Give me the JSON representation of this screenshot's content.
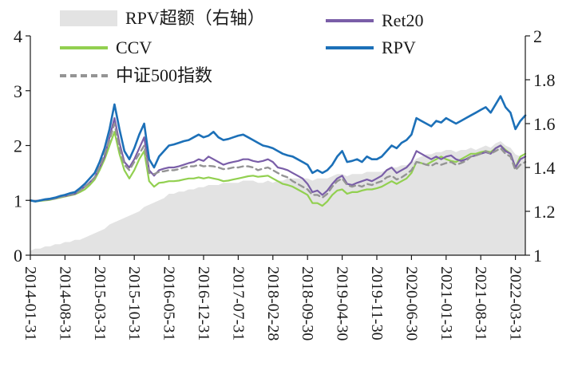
{
  "legend": {
    "items": [
      {
        "label": "RPV超额（右轴）",
        "series": "excess"
      },
      {
        "label": "Ret20",
        "series": "ret20"
      },
      {
        "label": "CCV",
        "series": "ccv"
      },
      {
        "label": "RPV",
        "series": "rpv"
      },
      {
        "label": "中证500指数",
        "series": "csi500"
      }
    ]
  },
  "chart_data": {
    "type": "line",
    "title": "",
    "background": "#ffffff",
    "axis_color": "#1a1a1a",
    "left_axis": {
      "range": [
        0,
        4
      ],
      "ticks": [
        {
          "value": 0,
          "label": "0"
        },
        {
          "value": 1,
          "label": "1"
        },
        {
          "value": 2,
          "label": "2"
        },
        {
          "value": 3,
          "label": "3"
        },
        {
          "value": 4,
          "label": "4"
        }
      ]
    },
    "right_axis": {
      "range": [
        1,
        2
      ],
      "ticks": [
        {
          "value": 1,
          "label": "1"
        },
        {
          "value": 1.2,
          "label": "1.2"
        },
        {
          "value": 1.4,
          "label": "1.4"
        },
        {
          "value": 1.6,
          "label": "1.6"
        },
        {
          "value": 1.8,
          "label": "1.8"
        },
        {
          "value": 2,
          "label": "2"
        }
      ]
    },
    "x": [
      "2014-01",
      "2014-02",
      "2014-03",
      "2014-04",
      "2014-05",
      "2014-06",
      "2014-07",
      "2014-08",
      "2014-09",
      "2014-10",
      "2014-11",
      "2014-12",
      "2015-01",
      "2015-02",
      "2015-03",
      "2015-04",
      "2015-05",
      "2015-06",
      "2015-07",
      "2015-08",
      "2015-09",
      "2015-10",
      "2015-11",
      "2015-12",
      "2016-01",
      "2016-02",
      "2016-03",
      "2016-04",
      "2016-05",
      "2016-06",
      "2016-07",
      "2016-08",
      "2016-09",
      "2016-10",
      "2016-11",
      "2016-12",
      "2017-01",
      "2017-02",
      "2017-03",
      "2017-04",
      "2017-05",
      "2017-06",
      "2017-07",
      "2017-08",
      "2017-09",
      "2017-10",
      "2017-11",
      "2017-12",
      "2018-01",
      "2018-02",
      "2018-03",
      "2018-04",
      "2018-05",
      "2018-06",
      "2018-07",
      "2018-08",
      "2018-09",
      "2018-10",
      "2018-11",
      "2018-12",
      "2019-01",
      "2019-02",
      "2019-03",
      "2019-04",
      "2019-05",
      "2019-06",
      "2019-07",
      "2019-08",
      "2019-09",
      "2019-10",
      "2019-11",
      "2019-12",
      "2020-01",
      "2020-02",
      "2020-03",
      "2020-04",
      "2020-05",
      "2020-06",
      "2020-07",
      "2020-08",
      "2020-09",
      "2020-10",
      "2020-11",
      "2020-12",
      "2021-01",
      "2021-02",
      "2021-03",
      "2021-04",
      "2021-05",
      "2021-06",
      "2021-07",
      "2021-08",
      "2021-09",
      "2021-10",
      "2021-11",
      "2021-12",
      "2022-01",
      "2022-02",
      "2022-03",
      "2022-04",
      "2022-05"
    ],
    "x_ticks": [
      {
        "index": 0,
        "label": "2014-01-31"
      },
      {
        "index": 7,
        "label": "2014-08-31"
      },
      {
        "index": 14,
        "label": "2015-03-31"
      },
      {
        "index": 21,
        "label": "2015-10-31"
      },
      {
        "index": 28,
        "label": "2016-05-31"
      },
      {
        "index": 35,
        "label": "2016-12-31"
      },
      {
        "index": 42,
        "label": "2017-07-31"
      },
      {
        "index": 49,
        "label": "2018-02-28"
      },
      {
        "index": 56,
        "label": "2018-09-30"
      },
      {
        "index": 63,
        "label": "2019-04-30"
      },
      {
        "index": 70,
        "label": "2019-11-30"
      },
      {
        "index": 77,
        "label": "2020-06-30"
      },
      {
        "index": 84,
        "label": "2021-01-31"
      },
      {
        "index": 91,
        "label": "2021-08-31"
      },
      {
        "index": 98,
        "label": "2022-03-31"
      }
    ],
    "series": [
      {
        "id": "excess",
        "name": "RPV超额（右轴）",
        "kind": "area",
        "axis": "right",
        "color": "#e3e3e3",
        "values": [
          1.02,
          1.03,
          1.03,
          1.04,
          1.04,
          1.05,
          1.05,
          1.06,
          1.06,
          1.07,
          1.07,
          1.08,
          1.09,
          1.1,
          1.11,
          1.12,
          1.14,
          1.15,
          1.16,
          1.17,
          1.18,
          1.19,
          1.2,
          1.22,
          1.23,
          1.24,
          1.25,
          1.26,
          1.28,
          1.28,
          1.29,
          1.29,
          1.3,
          1.3,
          1.31,
          1.31,
          1.32,
          1.32,
          1.32,
          1.33,
          1.33,
          1.33,
          1.33,
          1.34,
          1.34,
          1.34,
          1.33,
          1.33,
          1.34,
          1.33,
          1.34,
          1.34,
          1.35,
          1.35,
          1.35,
          1.35,
          1.35,
          1.34,
          1.35,
          1.35,
          1.35,
          1.36,
          1.37,
          1.37,
          1.36,
          1.37,
          1.37,
          1.37,
          1.38,
          1.38,
          1.38,
          1.38,
          1.39,
          1.4,
          1.4,
          1.41,
          1.41,
          1.42,
          1.44,
          1.45,
          1.46,
          1.46,
          1.47,
          1.47,
          1.48,
          1.48,
          1.47,
          1.48,
          1.48,
          1.49,
          1.48,
          1.49,
          1.5,
          1.49,
          1.51,
          1.52,
          1.5,
          1.49,
          1.46,
          1.45,
          1.44
        ]
      },
      {
        "id": "ccv",
        "name": "CCV",
        "kind": "line",
        "axis": "left",
        "color": "#92d050",
        "width": 2.2,
        "dash": false,
        "values": [
          1.0,
          0.98,
          0.99,
          1.0,
          1.01,
          1.03,
          1.05,
          1.07,
          1.09,
          1.11,
          1.15,
          1.2,
          1.28,
          1.38,
          1.55,
          1.75,
          2.0,
          2.25,
          1.85,
          1.55,
          1.4,
          1.55,
          1.75,
          1.9,
          1.35,
          1.25,
          1.32,
          1.33,
          1.35,
          1.35,
          1.36,
          1.38,
          1.4,
          1.4,
          1.42,
          1.4,
          1.42,
          1.4,
          1.38,
          1.35,
          1.36,
          1.38,
          1.4,
          1.42,
          1.44,
          1.45,
          1.43,
          1.44,
          1.45,
          1.4,
          1.35,
          1.3,
          1.28,
          1.25,
          1.2,
          1.15,
          1.1,
          0.95,
          0.95,
          0.9,
          0.98,
          1.1,
          1.18,
          1.2,
          1.12,
          1.15,
          1.15,
          1.18,
          1.2,
          1.2,
          1.22,
          1.25,
          1.3,
          1.35,
          1.3,
          1.35,
          1.4,
          1.5,
          1.7,
          1.68,
          1.65,
          1.7,
          1.75,
          1.8,
          1.75,
          1.72,
          1.7,
          1.75,
          1.8,
          1.85,
          1.85,
          1.88,
          1.9,
          1.88,
          1.95,
          2.0,
          1.92,
          1.85,
          1.6,
          1.8,
          1.85
        ]
      },
      {
        "id": "ret20",
        "name": "Ret20",
        "kind": "line",
        "axis": "left",
        "color": "#7a5ea8",
        "width": 2.2,
        "dash": false,
        "values": [
          1.0,
          0.99,
          1.0,
          1.01,
          1.02,
          1.04,
          1.06,
          1.08,
          1.1,
          1.12,
          1.18,
          1.25,
          1.33,
          1.42,
          1.6,
          1.8,
          2.15,
          2.5,
          2.05,
          1.7,
          1.6,
          1.75,
          1.95,
          2.15,
          1.55,
          1.45,
          1.55,
          1.58,
          1.6,
          1.6,
          1.62,
          1.65,
          1.68,
          1.7,
          1.75,
          1.72,
          1.8,
          1.75,
          1.7,
          1.65,
          1.68,
          1.7,
          1.72,
          1.75,
          1.75,
          1.72,
          1.7,
          1.72,
          1.75,
          1.7,
          1.6,
          1.58,
          1.55,
          1.5,
          1.45,
          1.4,
          1.3,
          1.15,
          1.18,
          1.1,
          1.18,
          1.3,
          1.4,
          1.45,
          1.3,
          1.28,
          1.32,
          1.35,
          1.38,
          1.35,
          1.4,
          1.45,
          1.55,
          1.6,
          1.5,
          1.55,
          1.6,
          1.7,
          1.9,
          1.85,
          1.8,
          1.75,
          1.8,
          1.75,
          1.8,
          1.82,
          1.75,
          1.72,
          1.75,
          1.8,
          1.82,
          1.85,
          1.88,
          1.85,
          1.95,
          2.0,
          1.9,
          1.85,
          1.6,
          1.75,
          1.8
        ]
      },
      {
        "id": "csi500",
        "name": "中证500指数",
        "kind": "line",
        "axis": "left",
        "color": "#949494",
        "width": 2.4,
        "dash": true,
        "values": [
          1.0,
          0.99,
          1.0,
          1.01,
          1.02,
          1.03,
          1.06,
          1.08,
          1.11,
          1.13,
          1.18,
          1.25,
          1.32,
          1.42,
          1.62,
          1.85,
          2.1,
          2.4,
          1.95,
          1.65,
          1.55,
          1.7,
          1.85,
          2.0,
          1.5,
          1.48,
          1.52,
          1.53,
          1.55,
          1.55,
          1.57,
          1.6,
          1.62,
          1.62,
          1.65,
          1.62,
          1.63,
          1.62,
          1.6,
          1.57,
          1.58,
          1.6,
          1.6,
          1.62,
          1.62,
          1.6,
          1.55,
          1.58,
          1.6,
          1.55,
          1.5,
          1.45,
          1.42,
          1.35,
          1.3,
          1.25,
          1.2,
          1.1,
          1.1,
          1.05,
          1.12,
          1.25,
          1.35,
          1.4,
          1.28,
          1.25,
          1.28,
          1.25,
          1.3,
          1.28,
          1.32,
          1.35,
          1.42,
          1.45,
          1.38,
          1.42,
          1.48,
          1.55,
          1.7,
          1.68,
          1.65,
          1.63,
          1.68,
          1.65,
          1.68,
          1.7,
          1.65,
          1.68,
          1.72,
          1.8,
          1.82,
          1.85,
          1.9,
          1.85,
          1.9,
          1.95,
          1.85,
          1.8,
          1.55,
          1.65,
          1.7
        ]
      },
      {
        "id": "rpv",
        "name": "RPV",
        "kind": "line",
        "axis": "left",
        "color": "#1c70b8",
        "width": 2.6,
        "dash": false,
        "values": [
          1.0,
          0.98,
          1.0,
          1.02,
          1.03,
          1.05,
          1.08,
          1.1,
          1.13,
          1.15,
          1.22,
          1.3,
          1.4,
          1.5,
          1.7,
          1.95,
          2.3,
          2.75,
          2.3,
          1.9,
          1.75,
          1.95,
          2.2,
          2.4,
          1.75,
          1.6,
          1.8,
          1.9,
          2.0,
          2.02,
          2.05,
          2.08,
          2.1,
          2.15,
          2.2,
          2.15,
          2.18,
          2.25,
          2.15,
          2.1,
          2.12,
          2.15,
          2.18,
          2.2,
          2.15,
          2.1,
          2.05,
          2.0,
          1.98,
          1.95,
          1.9,
          1.85,
          1.82,
          1.8,
          1.75,
          1.7,
          1.65,
          1.5,
          1.55,
          1.5,
          1.55,
          1.65,
          1.8,
          1.9,
          1.7,
          1.72,
          1.75,
          1.7,
          1.8,
          1.75,
          1.75,
          1.8,
          1.9,
          2.0,
          1.95,
          2.05,
          2.1,
          2.2,
          2.5,
          2.45,
          2.4,
          2.35,
          2.45,
          2.42,
          2.5,
          2.45,
          2.4,
          2.45,
          2.5,
          2.55,
          2.6,
          2.65,
          2.7,
          2.6,
          2.75,
          2.9,
          2.7,
          2.6,
          2.3,
          2.45,
          2.55
        ]
      }
    ]
  }
}
